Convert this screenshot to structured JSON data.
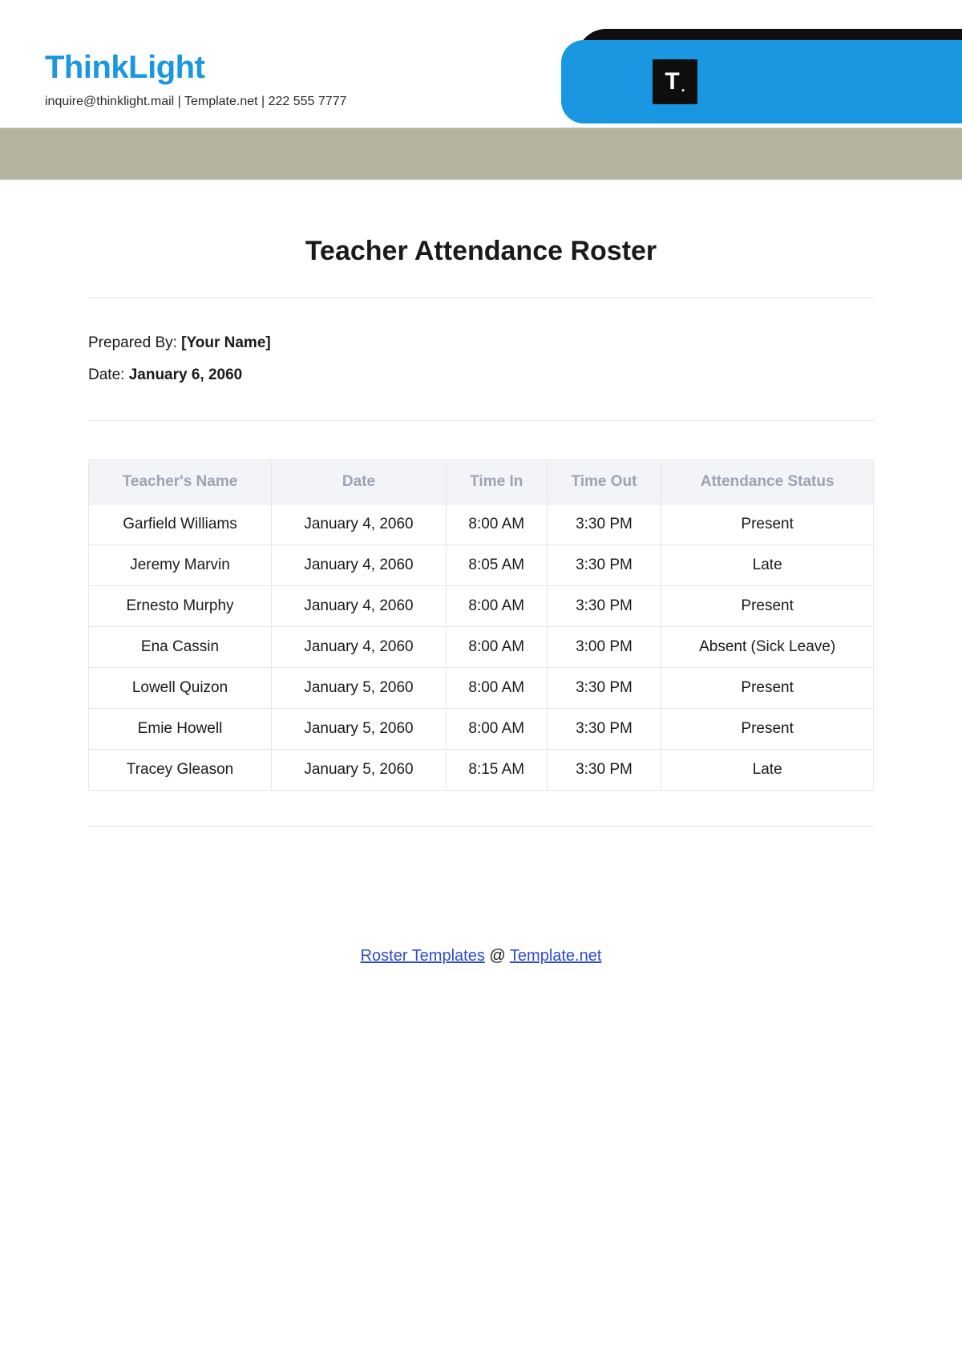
{
  "header": {
    "brand": "ThinkLight",
    "contact": "inquire@thinklight.mail  |  Template.net  |  222 555 7777",
    "logo_text": "T",
    "colors": {
      "brand_blue": "#1a97e0",
      "badge_black": "#0e0e0e",
      "gray_bar": "#b3b3a0"
    }
  },
  "document": {
    "title": "Teacher Attendance Roster",
    "prepared_by_label": "Prepared By: ",
    "prepared_by_value": "[Your Name]",
    "date_label": "Date: ",
    "date_value": "January 6, 2060"
  },
  "table": {
    "columns": [
      "Teacher's Name",
      "Date",
      "Time In",
      "Time Out",
      "Attendance Status"
    ],
    "rows": [
      [
        "Garfield Williams",
        "January 4, 2060",
        "8:00 AM",
        "3:30 PM",
        "Present"
      ],
      [
        "Jeremy Marvin",
        "January 4, 2060",
        "8:05 AM",
        "3:30 PM",
        "Late"
      ],
      [
        "Ernesto Murphy",
        "January 4, 2060",
        "8:00 AM",
        "3:30 PM",
        "Present"
      ],
      [
        "Ena Cassin",
        "January 4, 2060",
        "8:00 AM",
        "3:00 PM",
        "Absent (Sick Leave)"
      ],
      [
        "Lowell Quizon",
        "January 5, 2060",
        "8:00 AM",
        "3:30 PM",
        "Present"
      ],
      [
        "Emie Howell",
        "January 5, 2060",
        "8:00 AM",
        "3:30 PM",
        "Present"
      ],
      [
        "Tracey Gleason",
        "January 5, 2060",
        "8:15 AM",
        "3:30 PM",
        "Late"
      ]
    ],
    "header_bg": "#f3f4f8",
    "header_color": "#9aa4b3",
    "border_color": "#e6e6e6"
  },
  "footer": {
    "link1_text": "Roster Templates",
    "separator": " @ ",
    "link2_text": "Template.net"
  }
}
